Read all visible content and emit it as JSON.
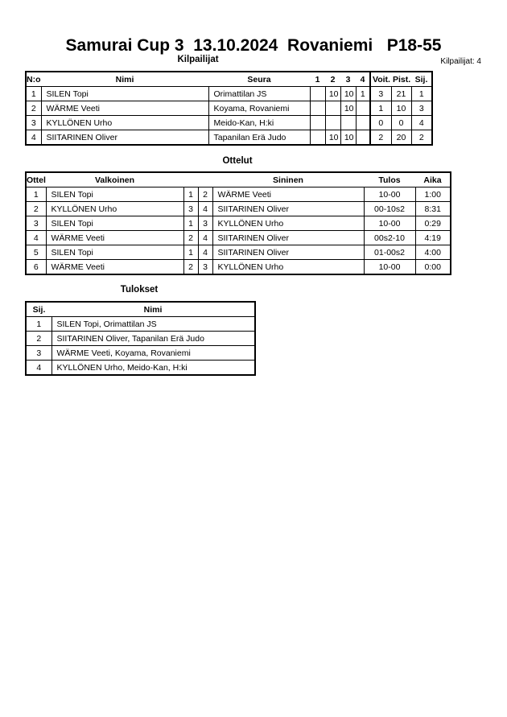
{
  "title": "Samurai Cup 3  13.10.2024  Rovaniemi   P18-55",
  "competitors": {
    "heading": "Kilpailijat",
    "count_label": "Kilpailijat: 4",
    "columns": [
      "N:o",
      "Nimi",
      "Seura",
      "1",
      "2",
      "3",
      "4",
      "Voit.",
      "Pist.",
      "Sij."
    ],
    "rows": [
      [
        "1",
        "SILEN Topi",
        "Orimattilan JS",
        "",
        "10",
        "10",
        "1",
        "3",
        "21",
        "1"
      ],
      [
        "2",
        "WÄRME Veeti",
        "Koyama, Rovaniemi",
        "",
        "",
        "10",
        "",
        "1",
        "10",
        "3"
      ],
      [
        "3",
        "KYLLÖNEN Urho",
        "Meido-Kan, H:ki",
        "",
        "",
        "",
        "",
        "0",
        "0",
        "4"
      ],
      [
        "4",
        "SIITARINEN Oliver",
        "Tapanilan Erä Judo",
        "",
        "10",
        "10",
        "",
        "2",
        "20",
        "2"
      ]
    ]
  },
  "matches": {
    "heading": "Ottelut",
    "columns": [
      "Ottelu",
      "Valkoinen",
      "",
      "",
      "Sininen",
      "Tulos",
      "Aika"
    ],
    "rows": [
      [
        "1",
        "SILEN Topi",
        "1",
        "2",
        "WÄRME Veeti",
        "10-00",
        "1:00"
      ],
      [
        "2",
        "KYLLÖNEN Urho",
        "3",
        "4",
        "SIITARINEN Oliver",
        "00-10s2",
        "8:31"
      ],
      [
        "3",
        "SILEN Topi",
        "1",
        "3",
        "KYLLÖNEN Urho",
        "10-00",
        "0:29"
      ],
      [
        "4",
        "WÄRME Veeti",
        "2",
        "4",
        "SIITARINEN Oliver",
        "00s2-10",
        "4:19"
      ],
      [
        "5",
        "SILEN Topi",
        "1",
        "4",
        "SIITARINEN Oliver",
        "01-00s2",
        "4:00"
      ],
      [
        "6",
        "WÄRME Veeti",
        "2",
        "3",
        "KYLLÖNEN Urho",
        "10-00",
        "0:00"
      ]
    ]
  },
  "results": {
    "heading": "Tulokset",
    "columns": [
      "Sij.",
      "Nimi"
    ],
    "rows": [
      [
        "1",
        "SILEN Topi, Orimattilan JS"
      ],
      [
        "2",
        "SIITARINEN Oliver, Tapanilan Erä Judo"
      ],
      [
        "3",
        "WÄRME Veeti, Koyama, Rovaniemi"
      ],
      [
        "4",
        "KYLLÖNEN Urho, Meido-Kan, H:ki"
      ]
    ]
  }
}
